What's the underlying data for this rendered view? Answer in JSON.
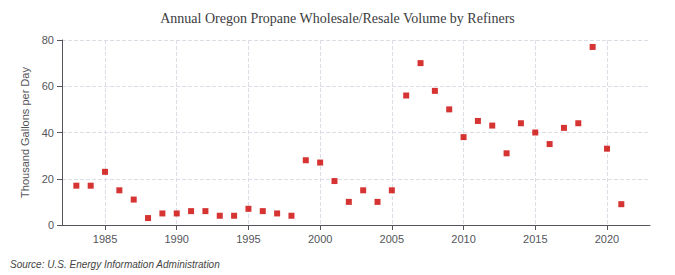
{
  "chart_data": {
    "type": "scatter",
    "title": "Annual Oregon Propane Wholesale/Resale Volume by Refiners",
    "ylabel": "Thousand Gallons per Day",
    "source": "Source: U.S. Energy Information Administration",
    "x": [
      1983,
      1984,
      1985,
      1986,
      1987,
      1988,
      1989,
      1990,
      1991,
      1992,
      1993,
      1994,
      1995,
      1996,
      1997,
      1998,
      1999,
      2000,
      2001,
      2002,
      2003,
      2004,
      2005,
      2006,
      2007,
      2008,
      2009,
      2010,
      2011,
      2012,
      2013,
      2014,
      2015,
      2016,
      2017,
      2018,
      2019,
      2020,
      2021
    ],
    "values": [
      17,
      17,
      23,
      15,
      11,
      3,
      5,
      5,
      6,
      6,
      4,
      4,
      7,
      6,
      5,
      4,
      28,
      27,
      19,
      10,
      15,
      10,
      15,
      56,
      70,
      58,
      50,
      38,
      45,
      43,
      31,
      44,
      40,
      35,
      42,
      44,
      77,
      33,
      9
    ],
    "color": "#cc0000",
    "marker": "square",
    "xlim": [
      1982,
      2023
    ],
    "xticks": [
      1985,
      1990,
      1995,
      2000,
      2005,
      2010,
      2015,
      2020
    ],
    "ylim": [
      0,
      80
    ],
    "yticks": [
      0,
      20,
      40,
      60,
      80
    ],
    "grid": true
  }
}
